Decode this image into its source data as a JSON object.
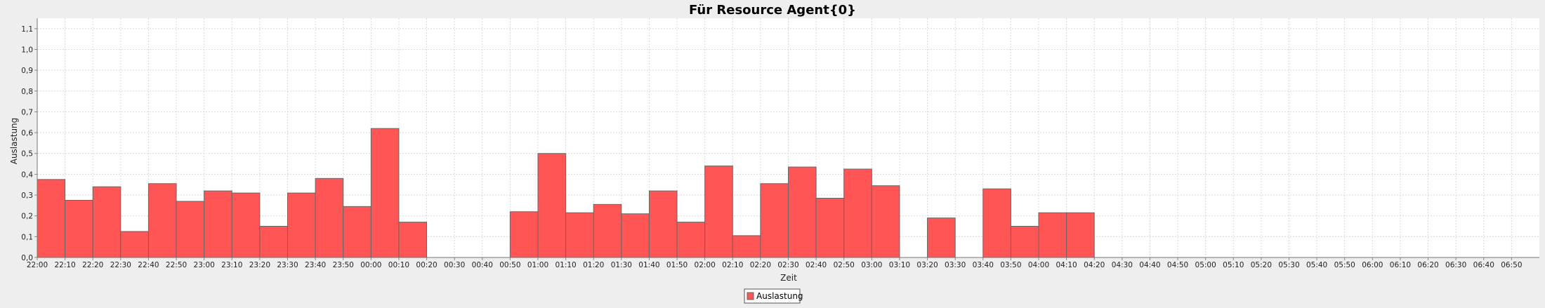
{
  "chart_data": {
    "type": "bar",
    "title": "Für Resource Agent{0}",
    "xlabel": "Zeit",
    "ylabel": "Auslastung",
    "ylim": [
      0,
      1.15
    ],
    "yticks": [
      "0,0",
      "0,1",
      "0,2",
      "0,3",
      "0,4",
      "0,5",
      "0,6",
      "0,7",
      "0,8",
      "0,9",
      "1,0",
      "1,1"
    ],
    "categories": [
      "22:00",
      "22:10",
      "22:20",
      "22:30",
      "22:40",
      "22:50",
      "23:00",
      "23:10",
      "23:20",
      "23:30",
      "23:40",
      "23:50",
      "00:00",
      "00:10",
      "00:20",
      "00:30",
      "00:40",
      "00:50",
      "01:00",
      "01:10",
      "01:20",
      "01:30",
      "01:40",
      "01:50",
      "02:00",
      "02:10",
      "02:20",
      "02:30",
      "02:40",
      "02:50",
      "03:00",
      "03:10",
      "03:20",
      "03:30",
      "03:40",
      "03:50",
      "04:00",
      "04:10",
      "04:20",
      "04:30",
      "04:40",
      "04:50",
      "05:00",
      "05:10",
      "05:20",
      "05:30",
      "05:40",
      "05:50",
      "06:00",
      "06:10",
      "06:20",
      "06:30",
      "06:40",
      "06:50"
    ],
    "series": [
      {
        "name": "Auslastung",
        "color": "#ff5555",
        "values": [
          0.375,
          0.275,
          0.34,
          0.125,
          0.355,
          0.27,
          0.32,
          0.31,
          0.15,
          0.31,
          0.38,
          0.245,
          0.62,
          0.17,
          0,
          0,
          0,
          0.22,
          0.5,
          0.215,
          0.255,
          0.21,
          0.32,
          0.17,
          0.44,
          0.105,
          0.355,
          0.435,
          0.285,
          0.425,
          0.345,
          0,
          0.19,
          0,
          0.33,
          0.15,
          0.215,
          0.215,
          0,
          0,
          0,
          0,
          0,
          0,
          0,
          0,
          0,
          0,
          0,
          0,
          0,
          0,
          0,
          0
        ]
      }
    ],
    "grid": true,
    "legend_position": "bottom-center"
  }
}
